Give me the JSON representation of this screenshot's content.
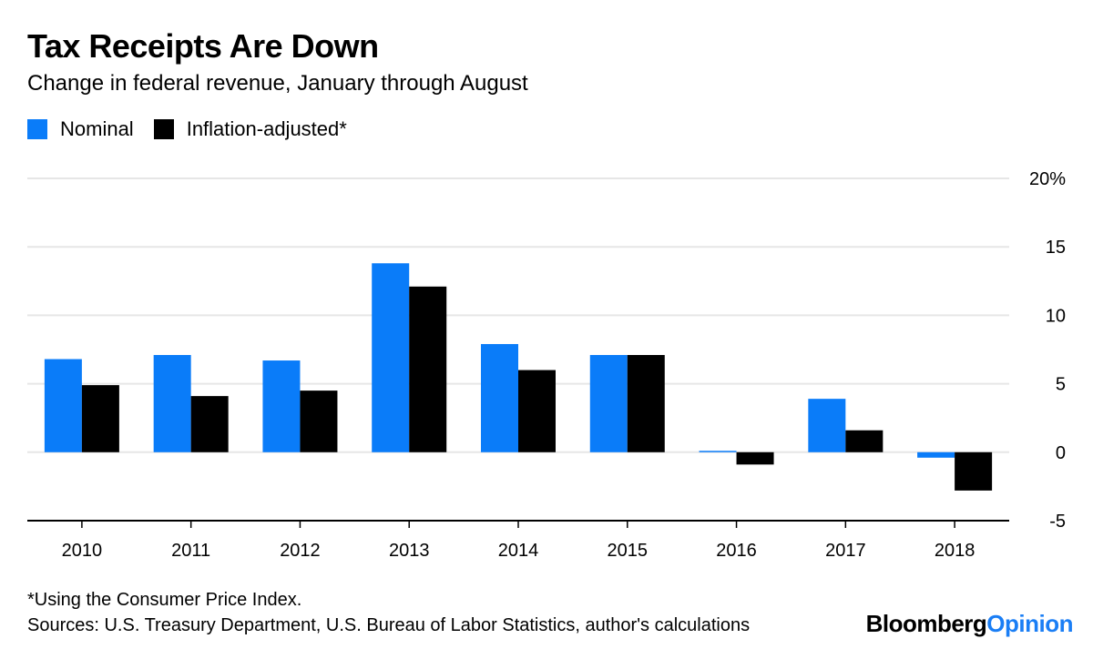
{
  "colors": {
    "nominal": "#0a7cf9",
    "inflation": "#000000",
    "grid": "#e6e6e6",
    "axis": "#000000",
    "brand_accent": "#1a7ef5"
  },
  "chart_data": {
    "type": "bar",
    "title": "Tax Receipts Are Down",
    "subtitle": "Change in federal revenue, January through August",
    "categories": [
      "2010",
      "2011",
      "2012",
      "2013",
      "2014",
      "2015",
      "2016",
      "2017",
      "2018"
    ],
    "series": [
      {
        "name": "Nominal",
        "values": [
          6.8,
          7.1,
          6.7,
          13.8,
          7.9,
          7.1,
          0.1,
          3.9,
          -0.4
        ]
      },
      {
        "name": "Inflation-adjusted*",
        "values": [
          4.9,
          4.1,
          4.5,
          12.1,
          6.0,
          7.1,
          -0.9,
          1.6,
          -2.8
        ]
      }
    ],
    "ylim": [
      -5,
      20
    ],
    "yticks": [
      20,
      15,
      10,
      5,
      0,
      -5
    ],
    "ytick_labels": [
      "20%",
      "15",
      "10",
      "5",
      "0",
      "-5"
    ],
    "xlabel": "",
    "ylabel": "",
    "legend_position": "top-left"
  },
  "footnote": "*Using the Consumer Price Index.",
  "sources": "Sources: U.S. Treasury Department, U.S. Bureau of Labor Statistics, author's calculations",
  "brand": {
    "part1": "Bloomberg",
    "part2": "Opinion"
  }
}
